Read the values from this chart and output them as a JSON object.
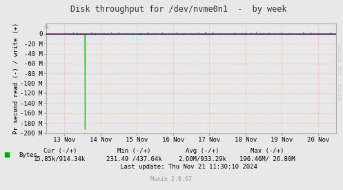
{
  "title": "Disk throughput for /dev/nvme0n1  -  by week",
  "ylabel": "Pr second read (-) / write (+)",
  "background_color": "#e8e8e8",
  "plot_bg_color": "#e8e8e8",
  "grid_color_h": "#ffaaaa",
  "grid_color_v": "#ccaaaa",
  "ylim": [
    -200000000,
    20000000
  ],
  "yticks": [
    0,
    -20000000,
    -40000000,
    -60000000,
    -80000000,
    -100000000,
    -120000000,
    -140000000,
    -160000000,
    -180000000,
    -200000000
  ],
  "ytick_labels": [
    "0",
    "-20 M",
    "-40 M",
    "-60 M",
    "-80 M",
    "-100 M",
    "-120 M",
    "-140 M",
    "-160 M",
    "-180 M",
    "-200 M"
  ],
  "xlim": [
    12.5,
    20.5
  ],
  "xtick_days": [
    13,
    14,
    15,
    16,
    17,
    18,
    19,
    20
  ],
  "xtick_labels": [
    "13 Nov",
    "14 Nov",
    "15 Nov",
    "16 Nov",
    "17 Nov",
    "18 Nov",
    "19 Nov",
    "20 Nov"
  ],
  "line_color": "#00cc00",
  "spike_x": 13.57,
  "spike_y": -193000000,
  "zero_line_color": "#111111",
  "watermark": "RRDTOOL / TOBI OETIKER",
  "legend_label": "Bytes",
  "legend_color": "#00aa00",
  "footer_cur_hdr": "Cur (-/+)",
  "footer_cur_val": "15.85k/914.34k",
  "footer_min_hdr": "Min (-/+)",
  "footer_min_val": "231.49 /437.64k",
  "footer_avg_hdr": "Avg (-/+)",
  "footer_avg_val": "2.60M/933.29k",
  "footer_max_hdr": "Max (-/+)",
  "footer_max_val": "196.46M/ 26.80M",
  "footer_update": "Last update: Thu Nov 21 11:30:10 2024",
  "munin_version": "Munin 2.0.67"
}
